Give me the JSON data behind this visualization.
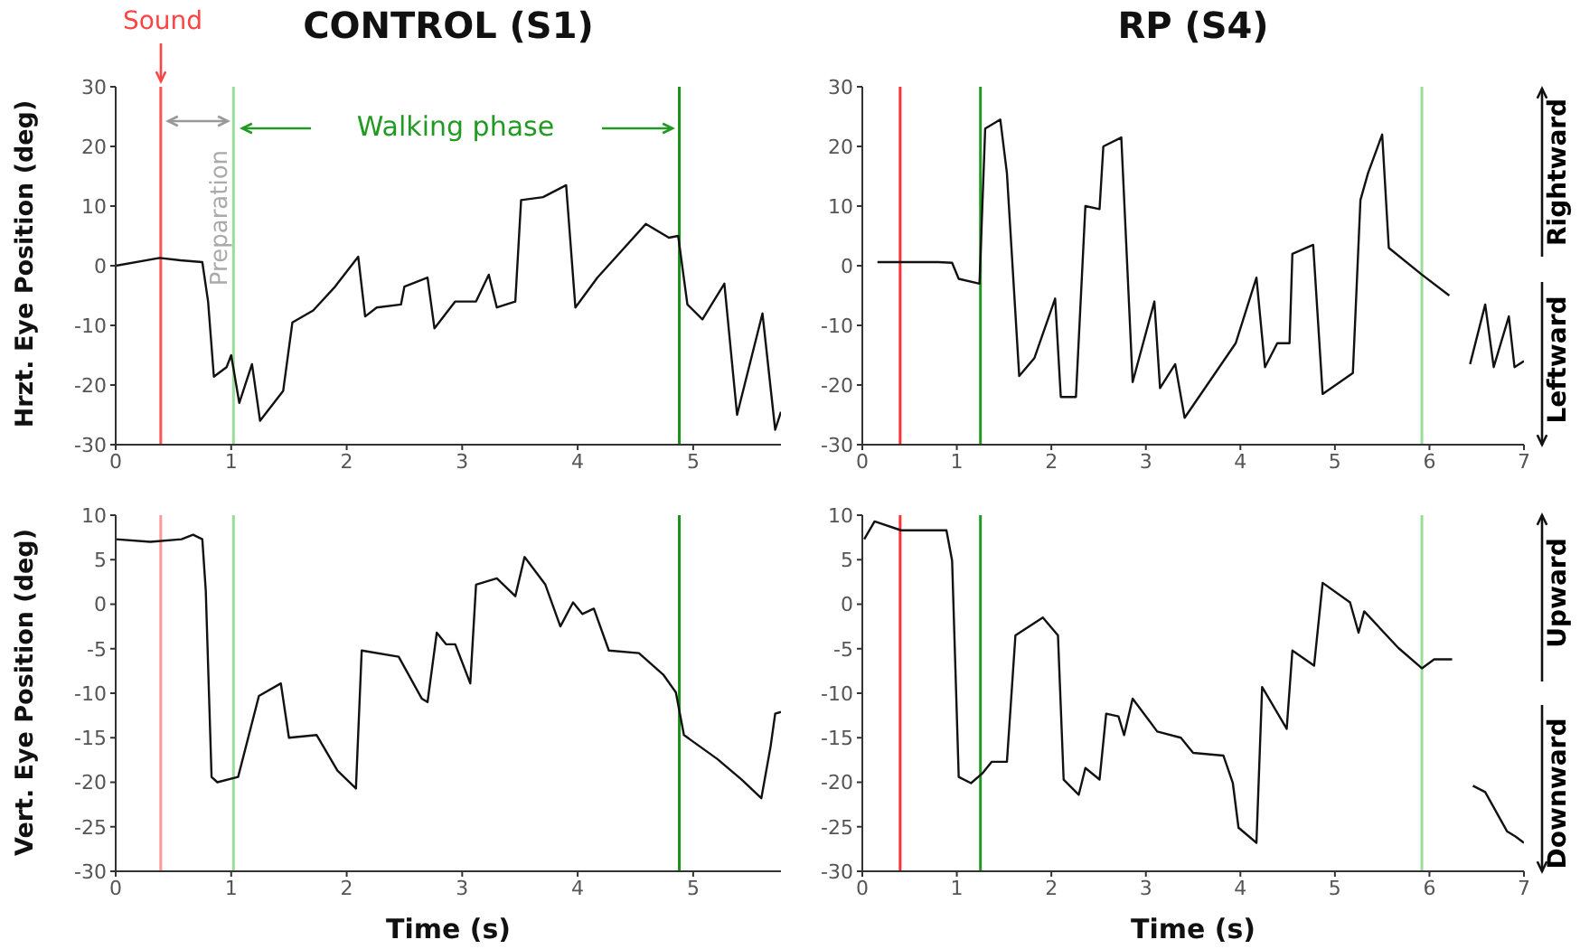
{
  "chart_data": [
    {
      "type": "line",
      "title": "CONTROL (S1)",
      "ylabel": "Hrzt. Eye Position (deg)",
      "xlim": [
        0,
        5.76
      ],
      "xticks": [
        0,
        1,
        2,
        3,
        4,
        5
      ],
      "ylim": [
        -30,
        30
      ],
      "yticks": [
        -30,
        -20,
        -10,
        0,
        10,
        20,
        30
      ],
      "x": [
        0,
        0.38,
        0.56,
        0.75,
        0.8,
        0.85,
        0.96,
        1.0,
        1.07,
        1.18,
        1.25,
        1.45,
        1.53,
        1.71,
        1.9,
        2.1,
        2.16,
        2.26,
        2.47,
        2.5,
        2.7,
        2.76,
        2.94,
        3.12,
        3.23,
        3.3,
        3.46,
        3.51,
        3.7,
        3.9,
        3.98,
        4.17,
        4.59,
        4.79,
        4.87,
        4.95,
        5.08,
        5.27,
        5.38,
        5.6,
        5.71,
        5.76
      ],
      "series": [
        {
          "color": "#111111",
          "values": [
            0,
            1.3,
            0.9,
            0.6,
            -6,
            -18.6,
            -17,
            -15,
            -23,
            -16.5,
            -26,
            -21,
            -9.5,
            -7.5,
            -3.5,
            1.5,
            -8.5,
            -7,
            -6.5,
            -3.5,
            -2,
            -10.5,
            -6,
            -6,
            -1.5,
            -7,
            -6,
            11,
            11.5,
            13.5,
            -7,
            -2,
            7,
            4.7,
            5,
            -6.5,
            -9,
            -3,
            -25,
            -8,
            -27.5,
            -24.5
          ]
        }
      ],
      "ref_lines": [
        {
          "axis": "x",
          "value": 0.39,
          "color": "#ff5555"
        },
        {
          "axis": "x",
          "value": 1.02,
          "color": "#99dd99"
        },
        {
          "axis": "x",
          "value": 4.88,
          "color": "#1a8f1a"
        }
      ],
      "annotations": [
        "Sound",
        "Preparation",
        "Walking phase"
      ]
    },
    {
      "type": "line",
      "title": "RP (S4)",
      "xlim": [
        0,
        7
      ],
      "xticks": [
        0,
        1,
        2,
        3,
        4,
        5,
        6,
        7
      ],
      "ylim": [
        -30,
        30
      ],
      "yticks": [
        -30,
        -20,
        -10,
        0,
        10,
        20,
        30
      ],
      "x": [
        0.16,
        0.8,
        0.95,
        1.02,
        1.24,
        1.3,
        1.46,
        1.53,
        1.66,
        1.82,
        2.04,
        2.1,
        2.26,
        2.36,
        2.51,
        2.55,
        2.74,
        2.86,
        3.09,
        3.15,
        3.31,
        3.41,
        3.95,
        4.17,
        4.26,
        4.39,
        4.52,
        4.55,
        4.77,
        4.87,
        5.19,
        5.27,
        5.35,
        5.5,
        5.57,
        5.92,
        6.21,
        6.32,
        6.43,
        6.59,
        6.68,
        6.84,
        6.9,
        7.0
      ],
      "series": [
        {
          "color": "#111111",
          "values": [
            0.6,
            0.6,
            0.5,
            -2.2,
            -3,
            23,
            24.5,
            15.5,
            -18.5,
            -15.5,
            -5.5,
            -22,
            -22,
            10,
            9.5,
            20,
            21.5,
            -19.5,
            -6,
            -20.5,
            -16.5,
            -25.5,
            -13,
            -2,
            -17,
            -13,
            -13,
            2,
            3.5,
            -21.5,
            -18,
            11,
            15.5,
            22,
            3,
            -1.5,
            -5,
            null,
            -16.5,
            -6.5,
            -17,
            -8.5,
            -17,
            -16
          ]
        }
      ],
      "ref_lines": [
        {
          "axis": "x",
          "value": 0.4,
          "color": "#ff3333"
        },
        {
          "axis": "x",
          "value": 1.25,
          "color": "#229922"
        },
        {
          "axis": "x",
          "value": 5.92,
          "color": "#99dd99"
        }
      ],
      "annotations": [
        "Rightward",
        "Leftward"
      ]
    },
    {
      "type": "line",
      "ylabel": "Vert. Eye Position (deg)",
      "xlabel": "Time (s)",
      "xlim": [
        0,
        5.76
      ],
      "xticks": [
        0,
        1,
        2,
        3,
        4,
        5
      ],
      "ylim": [
        -30,
        10
      ],
      "yticks": [
        -30,
        -25,
        -20,
        -15,
        -10,
        -5,
        0,
        5,
        10
      ],
      "x": [
        0,
        0.3,
        0.57,
        0.67,
        0.75,
        0.78,
        0.83,
        0.88,
        1.06,
        1.24,
        1.43,
        1.5,
        1.74,
        1.92,
        2.08,
        2.13,
        2.45,
        2.65,
        2.7,
        2.78,
        2.86,
        2.94,
        3.07,
        3.12,
        3.3,
        3.46,
        3.54,
        3.72,
        3.85,
        3.96,
        4.04,
        4.14,
        4.27,
        4.53,
        4.74,
        4.85,
        4.92,
        5.21,
        5.42,
        5.59,
        5.67,
        5.71,
        5.76
      ],
      "series": [
        {
          "color": "#111111",
          "values": [
            7.3,
            7,
            7.3,
            7.8,
            7.3,
            1.5,
            -19.4,
            -20,
            -19.4,
            -10.3,
            -8.9,
            -15,
            -14.7,
            -18.7,
            -20.7,
            -5.2,
            -5.9,
            -10.6,
            -11,
            -3.2,
            -4.5,
            -4.5,
            -8.9,
            2.2,
            2.9,
            0.9,
            5.3,
            2.2,
            -2.5,
            0.2,
            -1.1,
            -0.5,
            -5.2,
            -5.5,
            -7.9,
            -9.9,
            -14.7,
            -17.4,
            -19.7,
            -21.8,
            -16,
            -12.3,
            -12.1
          ]
        }
      ],
      "ref_lines": [
        {
          "axis": "x",
          "value": 0.39,
          "color": "#ff9999"
        },
        {
          "axis": "x",
          "value": 1.02,
          "color": "#99dd99"
        },
        {
          "axis": "x",
          "value": 4.88,
          "color": "#1a8f1a"
        }
      ]
    },
    {
      "type": "line",
      "xlabel": "Time (s)",
      "xlim": [
        0,
        7
      ],
      "xticks": [
        0,
        1,
        2,
        3,
        4,
        5,
        6,
        7
      ],
      "ylim": [
        -30,
        10
      ],
      "yticks": [
        -30,
        -25,
        -20,
        -15,
        -10,
        -5,
        0,
        5,
        10
      ],
      "x": [
        0.02,
        0.13,
        0.41,
        0.89,
        0.95,
        1.02,
        1.15,
        1.27,
        1.37,
        1.53,
        1.62,
        1.91,
        2.07,
        2.13,
        2.29,
        2.36,
        2.51,
        2.58,
        2.71,
        2.77,
        2.86,
        3.12,
        3.37,
        3.5,
        3.82,
        3.92,
        3.98,
        4.17,
        4.23,
        4.49,
        4.55,
        4.78,
        4.87,
        5.16,
        5.25,
        5.31,
        5.67,
        5.92,
        6.05,
        6.24,
        6.35,
        6.46,
        6.59,
        6.82,
        6.91,
        7.0
      ],
      "series": [
        {
          "color": "#111111",
          "values": [
            7.3,
            9.3,
            8.3,
            8.3,
            4.9,
            -19.4,
            -20.1,
            -19,
            -17.7,
            -17.7,
            -3.5,
            -1.5,
            -3.5,
            -19.7,
            -21.4,
            -18.4,
            -19.7,
            -12.3,
            -12.6,
            -14.7,
            -10.6,
            -14.3,
            -15,
            -16.7,
            -17,
            -20.1,
            -25.1,
            -26.8,
            -9.3,
            -14,
            -5.2,
            -6.9,
            2.4,
            0.2,
            -3.2,
            -0.8,
            -4.9,
            -7.2,
            -6.2,
            -6.2,
            null,
            -20.4,
            -21.1,
            -25.5,
            -26.1,
            -26.8
          ]
        }
      ],
      "ref_lines": [
        {
          "axis": "x",
          "value": 0.4,
          "color": "#ff3333"
        },
        {
          "axis": "x",
          "value": 1.25,
          "color": "#229922"
        },
        {
          "axis": "x",
          "value": 5.92,
          "color": "#99dd99"
        }
      ],
      "annotations": [
        "Upward",
        "Downward"
      ]
    }
  ]
}
